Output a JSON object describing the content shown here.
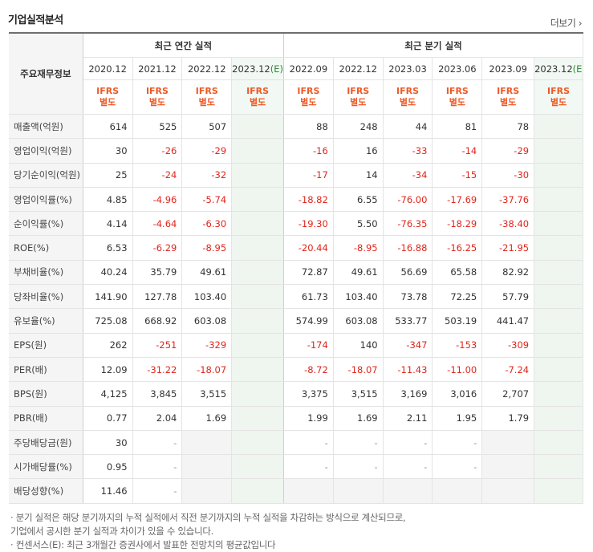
{
  "section_title": "기업실적분석",
  "more_link": "더보기",
  "row_header": "주요재무정보",
  "groups": [
    {
      "label": "최근 연간 실적"
    },
    {
      "label": "최근 분기 실적"
    }
  ],
  "periods": [
    {
      "date": "2020.12",
      "estimate": false
    },
    {
      "date": "2021.12",
      "estimate": false
    },
    {
      "date": "2022.12",
      "estimate": false
    },
    {
      "date": "2023.12",
      "mark": "(E)",
      "estimate": true
    },
    {
      "date": "2022.09",
      "estimate": false
    },
    {
      "date": "2022.12",
      "estimate": false
    },
    {
      "date": "2023.03",
      "estimate": false
    },
    {
      "date": "2023.06",
      "estimate": false
    },
    {
      "date": "2023.09",
      "estimate": false
    },
    {
      "date": "2023.12",
      "mark": "(E)",
      "estimate": true
    }
  ],
  "ifrs_line1": "IFRS",
  "ifrs_line2": "별도",
  "rows": [
    {
      "label": "매출액(억원)",
      "values": [
        "614",
        "525",
        "507",
        "",
        "88",
        "248",
        "44",
        "81",
        "78",
        ""
      ]
    },
    {
      "label": "영업이익(억원)",
      "values": [
        "30",
        "-26",
        "-29",
        "",
        "-16",
        "16",
        "-33",
        "-14",
        "-29",
        ""
      ]
    },
    {
      "label": "당기순이익(억원)",
      "values": [
        "25",
        "-24",
        "-32",
        "",
        "-17",
        "14",
        "-34",
        "-15",
        "-30",
        ""
      ]
    },
    {
      "label": "영업이익률(%)",
      "values": [
        "4.85",
        "-4.96",
        "-5.74",
        "",
        "-18.82",
        "6.55",
        "-76.00",
        "-17.69",
        "-37.76",
        ""
      ]
    },
    {
      "label": "순이익률(%)",
      "values": [
        "4.14",
        "-4.64",
        "-6.30",
        "",
        "-19.30",
        "5.50",
        "-76.35",
        "-18.29",
        "-38.40",
        ""
      ]
    },
    {
      "label": "ROE(%)",
      "values": [
        "6.53",
        "-6.29",
        "-8.95",
        "",
        "-20.44",
        "-8.95",
        "-16.88",
        "-16.25",
        "-21.95",
        ""
      ]
    },
    {
      "label": "부채비율(%)",
      "values": [
        "40.24",
        "35.79",
        "49.61",
        "",
        "72.87",
        "49.61",
        "56.69",
        "65.58",
        "82.92",
        ""
      ]
    },
    {
      "label": "당좌비율(%)",
      "values": [
        "141.90",
        "127.78",
        "103.40",
        "",
        "61.73",
        "103.40",
        "73.78",
        "72.25",
        "57.79",
        ""
      ]
    },
    {
      "label": "유보율(%)",
      "values": [
        "725.08",
        "668.92",
        "603.08",
        "",
        "574.99",
        "603.08",
        "533.77",
        "503.19",
        "441.47",
        ""
      ]
    },
    {
      "label": "EPS(원)",
      "values": [
        "262",
        "-251",
        "-329",
        "",
        "-174",
        "140",
        "-347",
        "-153",
        "-309",
        ""
      ]
    },
    {
      "label": "PER(배)",
      "values": [
        "12.09",
        "-31.22",
        "-18.07",
        "",
        "-8.72",
        "-18.07",
        "-11.43",
        "-11.00",
        "-7.24",
        ""
      ]
    },
    {
      "label": "BPS(원)",
      "values": [
        "4,125",
        "3,845",
        "3,515",
        "",
        "3,375",
        "3,515",
        "3,169",
        "3,016",
        "2,707",
        ""
      ]
    },
    {
      "label": "PBR(배)",
      "values": [
        "0.77",
        "2.04",
        "1.69",
        "",
        "1.99",
        "1.69",
        "2.11",
        "1.95",
        "1.79",
        ""
      ]
    },
    {
      "label": "주당배당금(원)",
      "values": [
        "30",
        "-",
        null,
        "",
        "-",
        "-",
        "-",
        "-",
        null,
        ""
      ]
    },
    {
      "label": "시가배당률(%)",
      "values": [
        "0.95",
        "-",
        null,
        "",
        "-",
        "-",
        "-",
        "-",
        null,
        ""
      ]
    },
    {
      "label": "배당성향(%)",
      "values": [
        "11.46",
        "-",
        null,
        "",
        null,
        null,
        null,
        null,
        null,
        ""
      ]
    }
  ],
  "notes": [
    "· 분기 실적은 해당 분기까지의 누적 실적에서 직전 분기까지의 누적 실적을 차감하는 방식으로 계산되므로,",
    "  기업에서 공시한 분기 실적과 차이가 있을 수 있습니다.",
    "· 컨센서스(E): 최근 3개월간 증권사에서 발표한 전망치의 평균값입니다"
  ]
}
